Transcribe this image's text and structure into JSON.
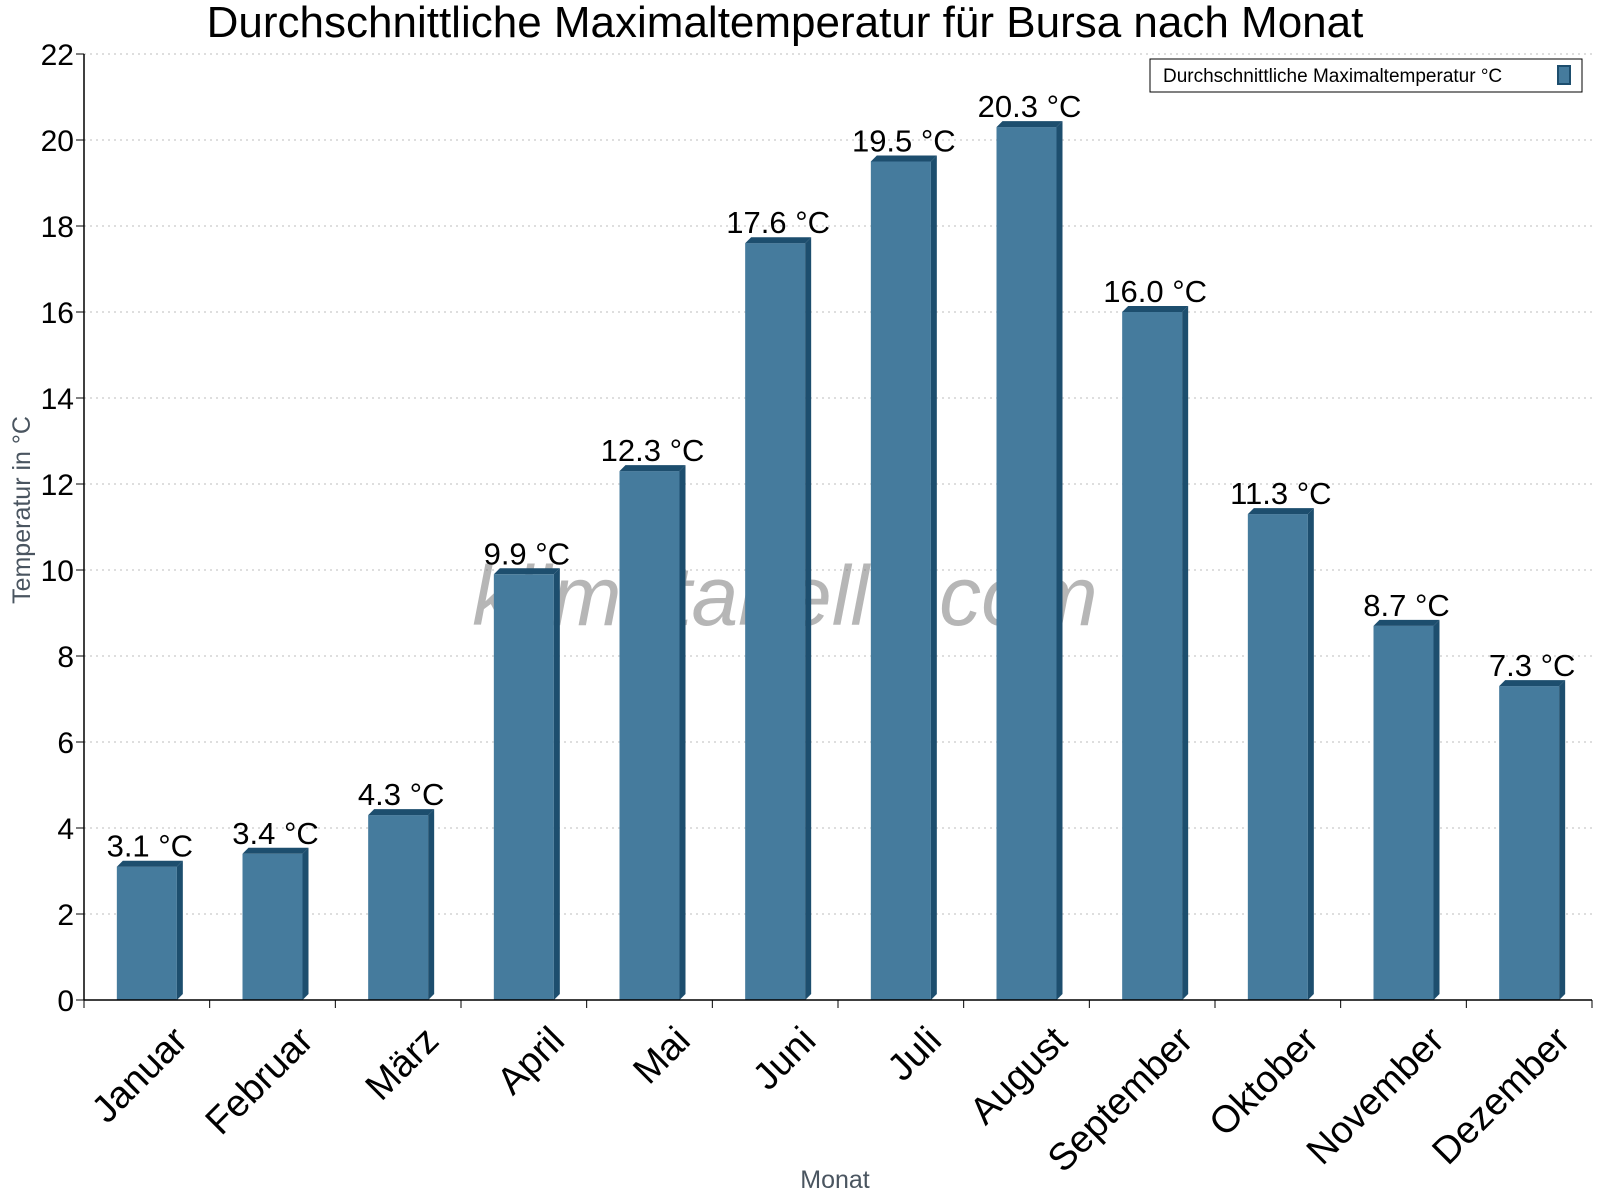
{
  "chart_data": {
    "type": "bar",
    "title": "Durchschnittliche Maximaltemperatur für Bursa nach Monat",
    "xlabel": "Monat",
    "ylabel": "Temperatur in °C",
    "ylim": [
      0,
      22
    ],
    "yticks": [
      0,
      2,
      4,
      6,
      8,
      10,
      12,
      14,
      16,
      18,
      20,
      22
    ],
    "grid": "horizontal dotted",
    "legend_position": "top-right",
    "categories": [
      "Januar",
      "Februar",
      "März",
      "April",
      "Mai",
      "Juni",
      "Juli",
      "August",
      "September",
      "Oktober",
      "November",
      "Dezember"
    ],
    "series": [
      {
        "name": "Durchschnittliche Maximaltemperatur °C",
        "values": [
          3.1,
          3.4,
          4.3,
          9.9,
          12.3,
          17.6,
          19.5,
          20.3,
          16.0,
          11.3,
          8.7,
          7.3
        ],
        "labels": [
          "3.1 °C",
          "3.4 °C",
          "4.3 °C",
          "9.9 °C",
          "12.3 °C",
          "17.6 °C",
          "19.5 °C",
          "20.3 °C",
          "16.0 °C",
          "11.3 °C",
          "8.7 °C",
          "7.3 °C"
        ],
        "color": "#457b9d",
        "side_color": "#1d4e6e"
      }
    ],
    "watermark": "klimatabelle.com"
  }
}
